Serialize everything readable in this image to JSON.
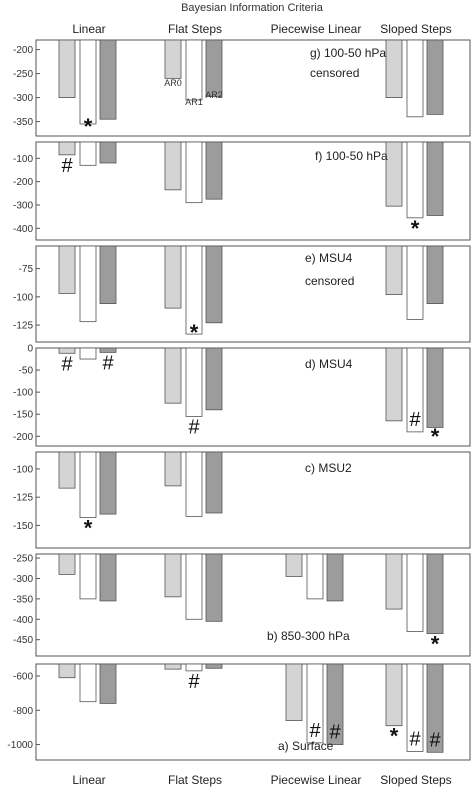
{
  "title": "Bayesian Information Criteria",
  "groups": [
    "Linear",
    "Flat Steps",
    "Piecewise Linear",
    "Sloped Steps"
  ],
  "bar_labels": [
    "AR0",
    "AR1",
    "AR2"
  ],
  "colors": {
    "AR0": "#d4d4d4",
    "AR1": "#ffffff",
    "AR2": "#9c9c9c",
    "frame": "#555555"
  },
  "chart_data": [
    {
      "type": "bar",
      "panel": "g) 100-50 hPa censored",
      "label_lines": [
        "g) 100-50 hPa",
        "censored"
      ],
      "categories": [
        "Linear",
        "Flat Steps",
        "Piecewise Linear",
        "Sloped Steps"
      ],
      "series": [
        {
          "name": "AR0",
          "values": [
            -300,
            -260,
            null,
            -300
          ]
        },
        {
          "name": "AR1",
          "values": [
            -355,
            -305,
            null,
            -340
          ]
        },
        {
          "name": "AR2",
          "values": [
            -345,
            -298,
            null,
            -335
          ]
        }
      ],
      "ylim": [
        -380,
        -180
      ],
      "yticks": [
        -200,
        -250,
        -300,
        -350
      ],
      "marks": [
        {
          "symbol": "*",
          "group": 0,
          "bar": 1
        }
      ]
    },
    {
      "type": "bar",
      "panel": "f) 100-50 hPa",
      "label_lines": [
        "f) 100-50 hPa"
      ],
      "categories": [
        "Linear",
        "Flat Steps",
        "Piecewise Linear",
        "Sloped Steps"
      ],
      "series": [
        {
          "name": "AR0",
          "values": [
            -85,
            -235,
            null,
            -305
          ]
        },
        {
          "name": "AR1",
          "values": [
            -130,
            -290,
            null,
            -355
          ]
        },
        {
          "name": "AR2",
          "values": [
            -120,
            -275,
            null,
            -345
          ]
        }
      ],
      "ylim": [
        -450,
        -30
      ],
      "yticks": [
        -100,
        -200,
        -300,
        -400
      ],
      "marks": [
        {
          "symbol": "#",
          "group": 0,
          "bar": 0
        },
        {
          "symbol": "*",
          "group": 3,
          "bar": 1
        }
      ]
    },
    {
      "type": "bar",
      "panel": "e) MSU4 censored",
      "label_lines": [
        "e) MSU4",
        "censored"
      ],
      "categories": [
        "Linear",
        "Flat Steps",
        "Piecewise Linear",
        "Sloped Steps"
      ],
      "series": [
        {
          "name": "AR0",
          "values": [
            -97,
            -110,
            null,
            -98
          ]
        },
        {
          "name": "AR1",
          "values": [
            -122,
            -133,
            null,
            -120
          ]
        },
        {
          "name": "AR2",
          "values": [
            -106,
            -123,
            null,
            -106
          ]
        }
      ],
      "ylim": [
        -140,
        -55
      ],
      "yticks": [
        -75,
        -100,
        -125
      ],
      "marks": [
        {
          "symbol": "*",
          "group": 1,
          "bar": 1
        }
      ]
    },
    {
      "type": "bar",
      "panel": "d) MSU4",
      "label_lines": [
        "d) MSU4"
      ],
      "categories": [
        "Linear",
        "Flat Steps",
        "Piecewise Linear",
        "Sloped Steps"
      ],
      "series": [
        {
          "name": "AR0",
          "values": [
            -12,
            -125,
            null,
            -165
          ]
        },
        {
          "name": "AR1",
          "values": [
            -25,
            -155,
            null,
            -190
          ]
        },
        {
          "name": "AR2",
          "values": [
            -10,
            -140,
            null,
            -180
          ]
        }
      ],
      "ylim": [
        -222,
        0
      ],
      "yticks": [
        0,
        -50,
        -100,
        -150,
        -200
      ],
      "marks": [
        {
          "symbol": "#",
          "group": 0,
          "bar": 0
        },
        {
          "symbol": "#",
          "group": 0,
          "bar": 2
        },
        {
          "symbol": "#",
          "group": 1,
          "bar": 1
        },
        {
          "symbol": "#",
          "group": 3,
          "bar": 1
        },
        {
          "symbol": "*",
          "group": 3,
          "bar": 2
        }
      ]
    },
    {
      "type": "bar",
      "panel": "c) MSU2",
      "label_lines": [
        "c) MSU2"
      ],
      "categories": [
        "Linear",
        "Flat Steps",
        "Piecewise Linear",
        "Sloped Steps"
      ],
      "series": [
        {
          "name": "AR0",
          "values": [
            -117,
            -115,
            null,
            null
          ]
        },
        {
          "name": "AR1",
          "values": [
            -143,
            -142,
            null,
            null
          ]
        },
        {
          "name": "AR2",
          "values": [
            -140,
            -139,
            null,
            null
          ]
        }
      ],
      "ylim": [
        -170,
        -85
      ],
      "yticks": [
        -100,
        -125,
        -150
      ],
      "marks": [
        {
          "symbol": "*",
          "group": 0,
          "bar": 1
        }
      ]
    },
    {
      "type": "bar",
      "panel": "b) 850-300 hPa",
      "label_lines": [
        "b) 850-300 hPa"
      ],
      "categories": [
        "Linear",
        "Flat Steps",
        "Piecewise Linear",
        "Sloped Steps"
      ],
      "series": [
        {
          "name": "AR0",
          "values": [
            -290,
            -345,
            -295,
            -375
          ]
        },
        {
          "name": "AR1",
          "values": [
            -350,
            -400,
            -350,
            -430
          ]
        },
        {
          "name": "AR2",
          "values": [
            -355,
            -405,
            -355,
            -435
          ]
        }
      ],
      "ylim": [
        -490,
        -240
      ],
      "yticks": [
        -250,
        -300,
        -350,
        -400,
        -450
      ],
      "marks": [
        {
          "symbol": "*",
          "group": 3,
          "bar": 2
        }
      ]
    },
    {
      "type": "bar",
      "panel": "a) Surface",
      "label_lines": [
        "a) Surface"
      ],
      "categories": [
        "Linear",
        "Flat Steps",
        "Piecewise Linear",
        "Sloped Steps"
      ],
      "series": [
        {
          "name": "AR0",
          "values": [
            -610,
            -560,
            -860,
            -890
          ]
        },
        {
          "name": "AR1",
          "values": [
            -750,
            -570,
            -990,
            -1040
          ]
        },
        {
          "name": "AR2",
          "values": [
            -760,
            -555,
            -1000,
            -1045
          ]
        }
      ],
      "ylim": [
        -1090,
        -530
      ],
      "yticks": [
        -600,
        -800,
        -1000
      ],
      "marks": [
        {
          "symbol": "#",
          "group": 1,
          "bar": 1
        },
        {
          "symbol": "#",
          "group": 2,
          "bar": 1
        },
        {
          "symbol": "#",
          "group": 2,
          "bar": 2
        },
        {
          "symbol": "*",
          "group": 3,
          "bar": 0
        },
        {
          "symbol": "#",
          "group": 3,
          "bar": 1
        },
        {
          "symbol": "#",
          "group": 3,
          "bar": 2
        }
      ]
    }
  ]
}
